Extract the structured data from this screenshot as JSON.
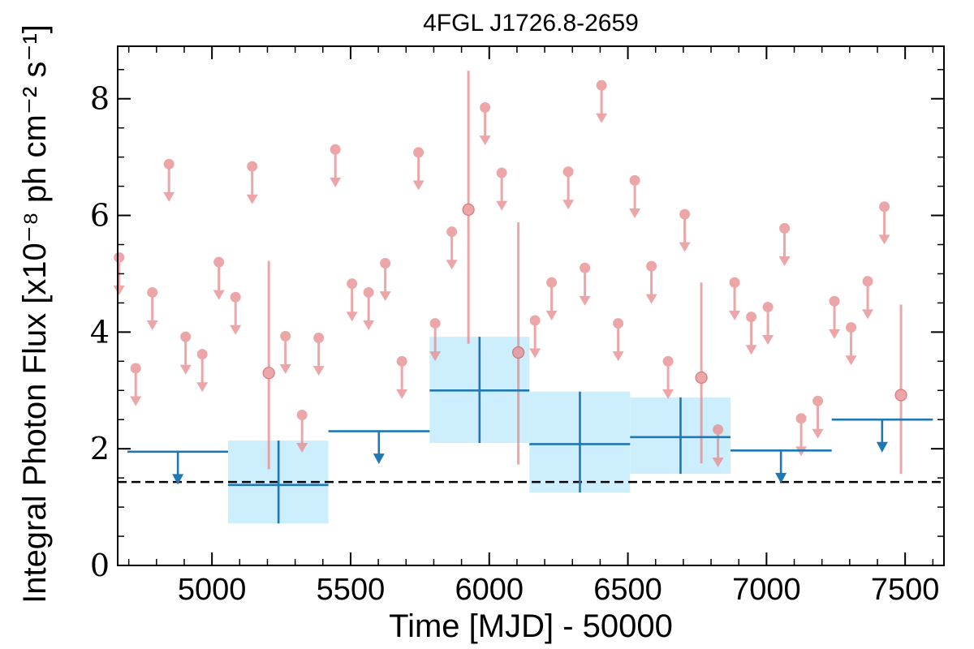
{
  "chart_data": {
    "type": "scatter",
    "title": "4FGL J1726.8-2659",
    "xlabel": "Time [MJD] - 50000",
    "ylabel": "Integral Photon Flux [x10⁻⁸ ph cm⁻² s⁻¹]",
    "xlim": [
      4660,
      7640
    ],
    "ylim": [
      0,
      8.9
    ],
    "xticks": [
      5000,
      5500,
      6000,
      6500,
      7000,
      7500
    ],
    "xtick_labels": [
      "5000",
      "5500",
      "6000",
      "6500",
      "7000",
      "7500"
    ],
    "yticks": [
      0,
      2,
      4,
      6,
      8
    ],
    "ytick_labels": [
      "0",
      "2",
      "4",
      "6",
      "8"
    ],
    "grid": false,
    "reference_line": {
      "y": 1.43,
      "style": "dashed",
      "color": "#000000"
    },
    "colors": {
      "fine": "#e7898b",
      "coarse": "#1f77b4",
      "band": "#cdeefc"
    },
    "series": [
      {
        "binning": "fine",
        "upper_limits": [
          {
            "x": 4665,
            "y": 5.28
          },
          {
            "x": 4725,
            "y": 3.38
          },
          {
            "x": 4785,
            "y": 4.68
          },
          {
            "x": 4845,
            "y": 6.88
          },
          {
            "x": 4905,
            "y": 3.92
          },
          {
            "x": 4965,
            "y": 3.62
          },
          {
            "x": 5025,
            "y": 5.2
          },
          {
            "x": 5085,
            "y": 4.6
          },
          {
            "x": 5145,
            "y": 6.84
          },
          {
            "x": 5265,
            "y": 3.93
          },
          {
            "x": 5325,
            "y": 2.58
          },
          {
            "x": 5385,
            "y": 3.9
          },
          {
            "x": 5445,
            "y": 7.13
          },
          {
            "x": 5505,
            "y": 4.83
          },
          {
            "x": 5565,
            "y": 4.68
          },
          {
            "x": 5625,
            "y": 5.18
          },
          {
            "x": 5685,
            "y": 3.5
          },
          {
            "x": 5745,
            "y": 7.08
          },
          {
            "x": 5805,
            "y": 4.15
          },
          {
            "x": 5865,
            "y": 5.72
          },
          {
            "x": 5985,
            "y": 7.85
          },
          {
            "x": 6045,
            "y": 6.73
          },
          {
            "x": 6165,
            "y": 4.2
          },
          {
            "x": 6225,
            "y": 4.85
          },
          {
            "x": 6285,
            "y": 6.75
          },
          {
            "x": 6345,
            "y": 5.1
          },
          {
            "x": 6405,
            "y": 8.23
          },
          {
            "x": 6465,
            "y": 4.15
          },
          {
            "x": 6525,
            "y": 6.6
          },
          {
            "x": 6585,
            "y": 5.13
          },
          {
            "x": 6645,
            "y": 3.5
          },
          {
            "x": 6705,
            "y": 6.02
          },
          {
            "x": 6825,
            "y": 2.33
          },
          {
            "x": 6885,
            "y": 4.85
          },
          {
            "x": 6945,
            "y": 4.26
          },
          {
            "x": 7005,
            "y": 4.43
          },
          {
            "x": 7065,
            "y": 5.78
          },
          {
            "x": 7125,
            "y": 2.52
          },
          {
            "x": 7185,
            "y": 2.82
          },
          {
            "x": 7245,
            "y": 4.53
          },
          {
            "x": 7305,
            "y": 4.08
          },
          {
            "x": 7365,
            "y": 4.87
          },
          {
            "x": 7425,
            "y": 6.15
          }
        ],
        "detections": [
          {
            "x": 5205,
            "y": 3.3,
            "y_low": 1.65,
            "y_high": 5.22
          },
          {
            "x": 5925,
            "y": 6.1,
            "y_low": 3.8,
            "y_high": 8.48
          },
          {
            "x": 6105,
            "y": 3.65,
            "y_low": 1.73,
            "y_high": 5.88
          },
          {
            "x": 6765,
            "y": 3.22,
            "y_low": 1.75,
            "y_high": 4.85
          },
          {
            "x": 7485,
            "y": 2.92,
            "y_low": 1.57,
            "y_high": 4.47
          }
        ]
      },
      {
        "binning": "coarse",
        "upper_limits": [
          {
            "x": 4877,
            "x_low": 4695,
            "x_high": 5058,
            "y": 1.95
          },
          {
            "x": 5602,
            "x_low": 5420,
            "x_high": 5785,
            "y": 2.3
          },
          {
            "x": 7052,
            "x_low": 6870,
            "x_high": 7235,
            "y": 1.97
          },
          {
            "x": 7417,
            "x_low": 7235,
            "x_high": 7600,
            "y": 2.5
          }
        ],
        "detections": [
          {
            "x": 5240,
            "x_low": 5058,
            "x_high": 5420,
            "y": 1.38,
            "y_low": 0.72,
            "y_high": 2.14
          },
          {
            "x": 5965,
            "x_low": 5785,
            "x_high": 6145,
            "y": 3.0,
            "y_low": 2.1,
            "y_high": 3.92
          },
          {
            "x": 6327,
            "x_low": 6145,
            "x_high": 6508,
            "y": 2.08,
            "y_low": 1.25,
            "y_high": 2.98
          },
          {
            "x": 6690,
            "x_low": 6508,
            "x_high": 6870,
            "y": 2.2,
            "y_low": 1.57,
            "y_high": 2.88
          }
        ]
      }
    ]
  }
}
